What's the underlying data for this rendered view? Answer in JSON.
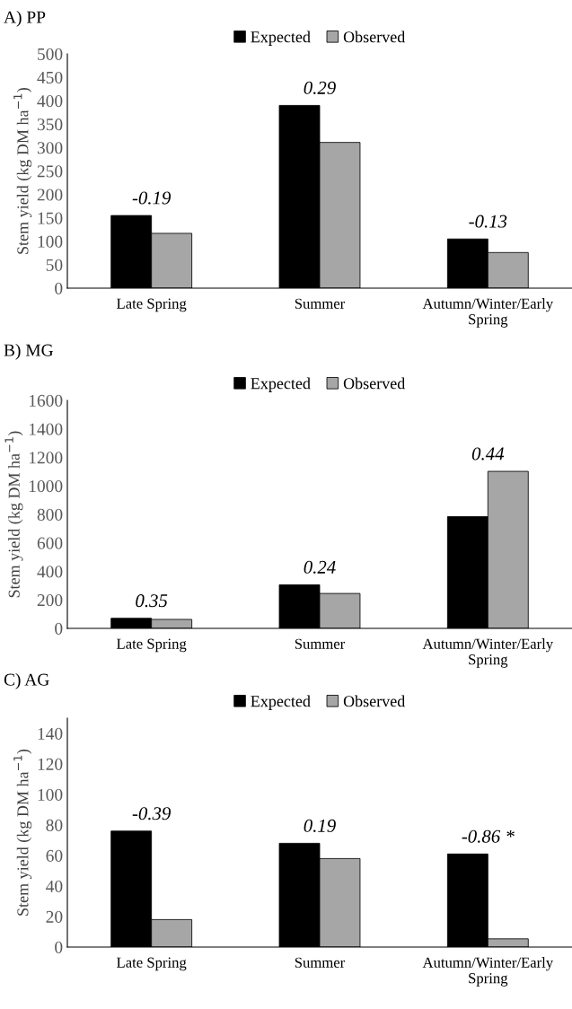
{
  "chart_data": [
    {
      "type": "bar",
      "title": "A) PP",
      "ylabel": "Stem yield (kg DM ha$^{−1}$)",
      "categories": [
        "Late Spring",
        "Summer",
        "Autumn/Winter/Early\nSpring"
      ],
      "series": [
        {
          "name": "Expected",
          "color": "#000000",
          "values": [
            155,
            390,
            105
          ]
        },
        {
          "name": "Observed",
          "color": "#a6a6a6",
          "values": [
            117,
            311,
            76
          ]
        }
      ],
      "ylim": [
        0,
        500
      ],
      "yticks": [
        0,
        50,
        100,
        150,
        200,
        250,
        300,
        350,
        400,
        450,
        500
      ],
      "legend": "top",
      "grid": false,
      "annotations": [
        {
          "text": "-0.19",
          "x": "Late Spring",
          "y": 155
        },
        {
          "text": "0.29",
          "x": "Summer",
          "y": 390
        },
        {
          "text": "-0.13",
          "x": "Autumn/Winter/Early\nSpring",
          "y": 105
        }
      ]
    },
    {
      "type": "bar",
      "title": "B) MG",
      "ylabel": "Stem yield (kg DM ha$^{−1}$)",
      "categories": [
        "Late Spring",
        "Summer",
        "Autumn/Winter/Early\nSpring"
      ],
      "series": [
        {
          "name": "Expected",
          "color": "#000000",
          "values": [
            71,
            306,
            784
          ]
        },
        {
          "name": "Observed",
          "color": "#a6a6a6",
          "values": [
            63,
            245,
            1102
          ]
        }
      ],
      "ylim": [
        0,
        1600
      ],
      "yticks": [
        0,
        200,
        400,
        600,
        800,
        1000,
        1200,
        1400,
        1600
      ],
      "legend": "top",
      "grid": false,
      "annotations": [
        {
          "text": "0.35",
          "x": "Late Spring",
          "y": 71
        },
        {
          "text": "0.24",
          "x": "Summer",
          "y": 306
        },
        {
          "text": "0.44",
          "x": "Autumn/Winter/Early\nSpring",
          "y": 1102
        }
      ]
    },
    {
      "type": "bar",
      "title": "C) AG",
      "ylabel": "Stem yield (kg DM ha$^{−1}$)",
      "categories": [
        "Late Spring",
        "Summer",
        "Autumn/Winter/Early\nSpring"
      ],
      "series": [
        {
          "name": "Expected",
          "color": "#000000",
          "values": [
            76,
            68,
            61
          ]
        },
        {
          "name": "Observed",
          "color": "#a6a6a6",
          "values": [
            18,
            58,
            5.4
          ]
        }
      ],
      "ylim": [
        0,
        150
      ],
      "yticks": [
        0,
        20,
        40,
        60,
        80,
        100,
        120,
        140
      ],
      "legend": "top",
      "grid": false,
      "annotations": [
        {
          "text": "-0.39",
          "x": "Late Spring",
          "y": 76
        },
        {
          "text": "0.19",
          "x": "Summer",
          "y": 68
        },
        {
          "text": "-0.86 *",
          "x": "Autumn/Winter/Early\nSpring",
          "y": 61
        }
      ]
    }
  ]
}
